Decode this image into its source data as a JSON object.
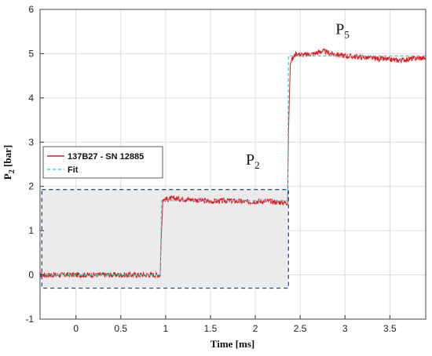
{
  "chart_data": {
    "type": "line",
    "xlabel": "Time [ms]",
    "ylabel": {
      "main": "P",
      "sub": "2",
      "unit": " [bar]"
    },
    "xlim": [
      -0.4,
      3.9
    ],
    "ylim": [
      -1,
      6
    ],
    "x_ticks": [
      "0",
      "0.5",
      "1",
      "1.5",
      "2",
      "2.5",
      "3",
      "3.5"
    ],
    "y_ticks": [
      "-1",
      "0",
      "1",
      "2",
      "3",
      "4",
      "5",
      "6"
    ],
    "grid": true,
    "legend_position": "left-middle",
    "annotations": [
      {
        "main": "P",
        "sub": "2",
        "x": 2.0,
        "y": 2.6
      },
      {
        "main": "P",
        "sub": "5",
        "x": 3.0,
        "y": 5.55
      }
    ],
    "highlight_box": {
      "x": [
        -0.38,
        2.37
      ],
      "y": [
        -0.3,
        1.93
      ]
    },
    "series": [
      {
        "name": "137B27 - SN 12885",
        "color": "#e41a1c",
        "x": [
          -0.4,
          0.94,
          0.95,
          0.97,
          1.1,
          1.3,
          1.5,
          1.7,
          1.9,
          2.1,
          2.3,
          2.36,
          2.37,
          2.39,
          2.45,
          2.55,
          2.65,
          2.75,
          2.85,
          3.0,
          3.2,
          3.4,
          3.6,
          3.8,
          3.9
        ],
        "y": [
          0.0,
          0.0,
          0.8,
          1.7,
          1.73,
          1.7,
          1.66,
          1.68,
          1.65,
          1.67,
          1.64,
          1.63,
          3.2,
          4.8,
          5.0,
          4.97,
          5.0,
          5.06,
          5.0,
          4.95,
          4.92,
          4.88,
          4.85,
          4.9,
          4.9
        ]
      },
      {
        "name": "Fit",
        "color": "#33d6e6",
        "dashed": true,
        "x": [
          -0.4,
          0.94,
          0.955,
          2.36,
          2.37,
          3.9
        ],
        "y": [
          0.0,
          0.0,
          1.68,
          1.68,
          4.95,
          4.95
        ]
      }
    ]
  }
}
